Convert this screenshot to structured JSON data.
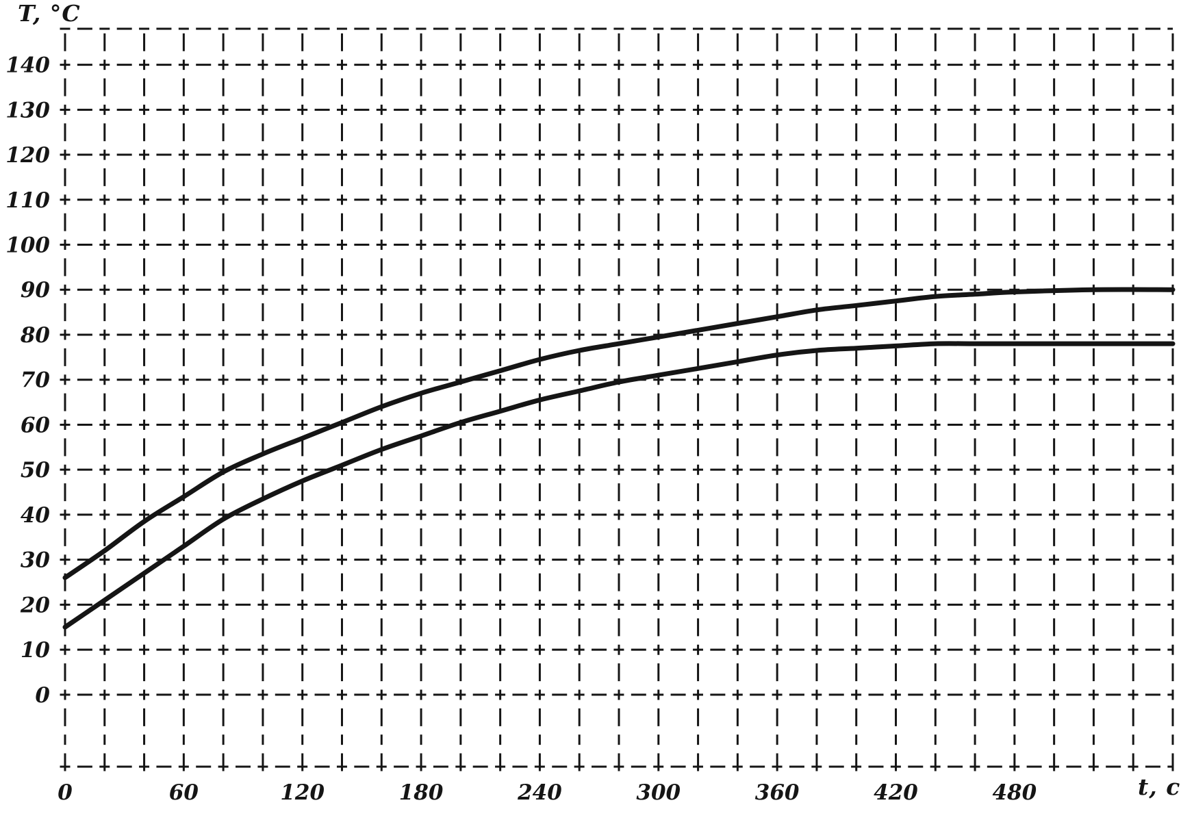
{
  "page": {
    "background": "#ffffff",
    "ink": "#151515"
  },
  "chart_data": {
    "type": "line",
    "title": "",
    "ylabel": "T, °C",
    "xlabel": "t, c",
    "xlim": [
      0,
      560
    ],
    "ylim": [
      -16,
      148
    ],
    "x_grid_step": 20,
    "y_grid_step": 10,
    "grid": true,
    "grid_style": "dashed-cross",
    "legend": "none",
    "x_tick_values": [
      0,
      60,
      120,
      180,
      240,
      300,
      360,
      420,
      480
    ],
    "x_tick_labels": [
      "0",
      "60",
      "120",
      "180",
      "240",
      "300",
      "360",
      "420",
      "480"
    ],
    "y_tick_values": [
      0,
      10,
      20,
      30,
      40,
      50,
      60,
      70,
      80,
      90,
      100,
      110,
      120,
      130,
      140
    ],
    "y_tick_labels": [
      "0",
      "10",
      "20",
      "30",
      "40",
      "50",
      "60",
      "70",
      "80",
      "90",
      "100",
      "110",
      "120",
      "130",
      "140"
    ],
    "series": [
      {
        "name": "upper-curve",
        "x": [
          0,
          20,
          40,
          60,
          80,
          100,
          120,
          140,
          160,
          180,
          200,
          220,
          240,
          260,
          280,
          300,
          320,
          340,
          360,
          380,
          400,
          420,
          440,
          460,
          480,
          520,
          560
        ],
        "y": [
          26,
          32,
          38.5,
          44,
          49.5,
          53.5,
          57,
          60.5,
          64,
          67,
          69.5,
          72,
          74.5,
          76.5,
          78,
          79.5,
          81,
          82.5,
          84,
          85.5,
          86.5,
          87.5,
          88.5,
          89,
          89.5,
          90,
          90
        ]
      },
      {
        "name": "lower-curve",
        "x": [
          0,
          20,
          40,
          60,
          80,
          100,
          120,
          140,
          160,
          180,
          200,
          220,
          240,
          260,
          280,
          300,
          320,
          340,
          360,
          380,
          400,
          420,
          440,
          460,
          480,
          520,
          560
        ],
        "y": [
          15,
          21,
          27,
          33,
          39,
          43.5,
          47.5,
          51,
          54.5,
          57.5,
          60.5,
          63,
          65.5,
          67.5,
          69.5,
          71,
          72.5,
          74,
          75.5,
          76.5,
          77,
          77.5,
          78,
          78,
          78,
          78,
          78
        ]
      }
    ]
  }
}
